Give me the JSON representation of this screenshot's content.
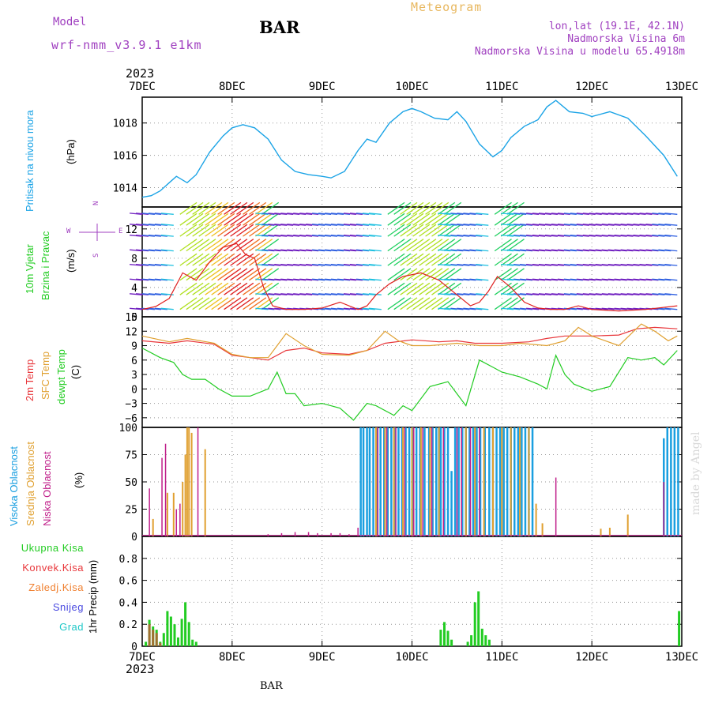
{
  "header": {
    "model_label": "Model",
    "model_name": "wrf-nmm_v3.9.1 e1km",
    "station": "BAR",
    "title": "Meteogram",
    "lonlat": "lon,lat (19.1E, 42.1N)",
    "altitude": "Nadmorska Visina 6m",
    "model_altitude": "Nadmorska Visina u modelu 65.4918m",
    "credit": "made by Angel",
    "footer_station": "BAR"
  },
  "colors": {
    "pressure": "#1aa3e6",
    "t2m": "#e8363a",
    "sfc": "#e0a030",
    "dewpt": "#22cc22",
    "high_cloud": "#1a9fe0",
    "mid_cloud": "#e0a030",
    "low_cloud": "#c0208a",
    "total_precip": "#22cc22",
    "conv_precip": "#e8363a",
    "frz_precip": "#f08030",
    "snow": "#4a4ae0",
    "graupel": "#20c8c8",
    "model_text": "#a040c0",
    "title_text": "#e8b860"
  },
  "time_axis": {
    "year": "2023",
    "ticks": [
      "7DEC",
      "8DEC",
      "9DEC",
      "10DEC",
      "11DEC",
      "12DEC",
      "13DEC"
    ]
  },
  "chart_data": [
    {
      "type": "line",
      "name": "pressure",
      "ylabel": [
        "Pritisak na nivou mora",
        "(hPa)"
      ],
      "ylim": [
        1012.8,
        1019.6
      ],
      "yticks": [
        "1014",
        "1016",
        "1018"
      ],
      "x_days": [
        0,
        0.1,
        0.2,
        0.3,
        0.38,
        0.5,
        0.6,
        0.75,
        0.9,
        1.0,
        1.12,
        1.25,
        1.4,
        1.55,
        1.7,
        1.85,
        2.0,
        2.1,
        2.25,
        2.4,
        2.5,
        2.6,
        2.75,
        2.9,
        3.0,
        3.1,
        3.25,
        3.4,
        3.5,
        3.6,
        3.75,
        3.9,
        4.0,
        4.1,
        4.25,
        4.4,
        4.5,
        4.6,
        4.75,
        4.9,
        5.0,
        5.2,
        5.4,
        5.6,
        5.8,
        5.95
      ],
      "values": [
        1013.4,
        1013.5,
        1013.8,
        1014.3,
        1014.7,
        1014.3,
        1014.8,
        1016.2,
        1017.2,
        1017.7,
        1017.9,
        1017.7,
        1017.0,
        1015.7,
        1015.0,
        1014.8,
        1014.7,
        1014.6,
        1015.0,
        1016.3,
        1017.0,
        1016.8,
        1018.0,
        1018.7,
        1018.9,
        1018.7,
        1018.3,
        1018.2,
        1018.7,
        1018.1,
        1016.7,
        1015.9,
        1016.3,
        1017.1,
        1017.8,
        1018.2,
        1019.0,
        1019.4,
        1018.7,
        1018.6,
        1018.4,
        1018.7,
        1018.3,
        1017.2,
        1016.0,
        1014.7
      ]
    },
    {
      "type": "line",
      "name": "wind",
      "ylabel": [
        "10m Vjetar",
        "Brzina i Pravac",
        "(m/s)"
      ],
      "compass": {
        "n": "N",
        "e": "E",
        "s": "S",
        "w": "W"
      },
      "ylim": [
        0,
        15
      ],
      "yticks": [
        "0",
        "4",
        "8",
        "12"
      ],
      "x_days": [
        0,
        0.15,
        0.3,
        0.45,
        0.6,
        0.75,
        0.9,
        1.05,
        1.15,
        1.25,
        1.35,
        1.45,
        1.6,
        1.8,
        2.0,
        2.2,
        2.4,
        2.5,
        2.6,
        2.75,
        2.9,
        3.1,
        3.3,
        3.5,
        3.65,
        3.75,
        3.85,
        3.95,
        4.1,
        4.25,
        4.4,
        4.55,
        4.7,
        4.85,
        5.0,
        5.3,
        5.6,
        5.95
      ],
      "values": [
        1.0,
        1.4,
        2.5,
        6.0,
        5.0,
        7.5,
        9.5,
        10.0,
        8.5,
        8.0,
        4.0,
        1.5,
        1.0,
        1.0,
        1.2,
        2.0,
        1.0,
        1.5,
        3.0,
        4.5,
        5.5,
        6.0,
        5.0,
        3.0,
        1.5,
        2.0,
        3.5,
        5.5,
        4.0,
        2.0,
        1.2,
        1.0,
        1.0,
        1.5,
        1.0,
        0.8,
        1.0,
        1.5
      ]
    },
    {
      "type": "line",
      "name": "temperature",
      "ylabel": [
        "2m Temp",
        "SFC Temp",
        "dewpt Temp",
        "(C)"
      ],
      "ylim": [
        -8,
        15
      ],
      "yticks": [
        "15",
        "12",
        "9",
        "6",
        "3",
        "0",
        "−3",
        "−6"
      ],
      "series": [
        {
          "name": "2m Temp",
          "x_days": [
            0,
            0.3,
            0.5,
            0.8,
            1.0,
            1.2,
            1.4,
            1.6,
            1.8,
            2.0,
            2.3,
            2.5,
            2.7,
            3.0,
            3.3,
            3.5,
            3.7,
            4.0,
            4.3,
            4.5,
            4.7,
            5.0,
            5.3,
            5.5,
            5.7,
            5.95
          ],
          "values": [
            10.0,
            9.5,
            10.0,
            9.3,
            7.0,
            6.5,
            6.0,
            8.0,
            8.5,
            7.5,
            7.2,
            8.0,
            9.5,
            10.2,
            9.8,
            10.0,
            9.5,
            9.5,
            9.8,
            10.5,
            11.0,
            11.0,
            11.2,
            12.5,
            12.8,
            12.5
          ]
        },
        {
          "name": "SFC Temp",
          "x_days": [
            0,
            0.3,
            0.5,
            0.8,
            1.0,
            1.2,
            1.4,
            1.5,
            1.6,
            1.8,
            2.0,
            2.3,
            2.5,
            2.7,
            2.85,
            3.0,
            3.2,
            3.5,
            3.75,
            4.0,
            4.2,
            4.5,
            4.7,
            4.85,
            5.0,
            5.3,
            5.55,
            5.7,
            5.85,
            5.95
          ],
          "values": [
            11.0,
            9.8,
            10.5,
            9.5,
            7.2,
            6.5,
            6.5,
            9.0,
            11.5,
            9.0,
            7.2,
            7.0,
            8.0,
            12.0,
            10.0,
            9.0,
            9.0,
            9.5,
            9.0,
            9.0,
            9.5,
            9.0,
            10.0,
            12.8,
            11.0,
            9.0,
            13.5,
            12.0,
            10.0,
            11.0
          ]
        },
        {
          "name": "dewpt Temp",
          "x_days": [
            0,
            0.2,
            0.35,
            0.45,
            0.55,
            0.7,
            0.85,
            1.0,
            1.2,
            1.4,
            1.5,
            1.6,
            1.7,
            1.8,
            2.0,
            2.2,
            2.35,
            2.5,
            2.6,
            2.8,
            2.9,
            3.0,
            3.2,
            3.4,
            3.5,
            3.6,
            3.75,
            3.9,
            4.0,
            4.2,
            4.4,
            4.5,
            4.6,
            4.7,
            4.8,
            5.0,
            5.2,
            5.4,
            5.55,
            5.7,
            5.8,
            5.95
          ],
          "values": [
            8.5,
            6.5,
            5.5,
            3.0,
            2.0,
            2.0,
            0.0,
            -1.5,
            -1.5,
            0.0,
            3.5,
            -1.0,
            -1.0,
            -3.5,
            -3.0,
            -4.0,
            -6.5,
            -3.0,
            -3.5,
            -5.5,
            -3.5,
            -4.5,
            0.5,
            1.5,
            -1.0,
            -3.5,
            6.0,
            4.5,
            3.5,
            2.5,
            1.0,
            0.0,
            7.0,
            3.0,
            1.0,
            -0.5,
            0.5,
            6.5,
            6.0,
            6.5,
            5.0,
            8.0
          ]
        }
      ]
    },
    {
      "type": "bar",
      "name": "cloudiness",
      "ylabel": [
        "Visoka Oblacnost",
        "Srednja Oblacnost",
        "Niska Oblacnost",
        "(%)"
      ],
      "ylim": [
        0,
        100
      ],
      "yticks": [
        "0",
        "25",
        "50",
        "75",
        "100"
      ],
      "series": [
        {
          "name": "Visoka Oblacnost",
          "x_days": [
            2.43,
            2.46,
            2.5,
            2.53,
            2.57,
            2.61,
            2.65,
            2.69,
            2.73,
            2.77,
            2.81,
            2.85,
            2.89,
            2.93,
            2.97,
            3.01,
            3.05,
            3.09,
            3.14,
            3.19,
            3.23,
            3.27,
            3.3,
            3.32,
            3.36,
            3.4,
            3.44,
            3.48,
            3.52,
            3.56,
            3.6,
            3.64,
            3.68,
            3.72,
            3.76,
            3.81,
            3.86,
            3.9,
            3.94,
            3.98,
            4.02,
            4.06,
            4.1,
            4.14,
            4.18,
            4.22,
            4.26,
            4.3,
            4.34,
            5.8,
            5.84,
            5.88,
            5.92,
            5.96
          ],
          "values": [
            100,
            100,
            100,
            100,
            100,
            100,
            100,
            100,
            100,
            100,
            100,
            100,
            100,
            100,
            100,
            100,
            100,
            100,
            100,
            100,
            100,
            100,
            100,
            100,
            100,
            100,
            60,
            100,
            100,
            100,
            100,
            100,
            100,
            100,
            100,
            100,
            100,
            100,
            100,
            100,
            100,
            100,
            100,
            100,
            100,
            100,
            100,
            100,
            100,
            90,
            100,
            100,
            100,
            100
          ]
        },
        {
          "name": "Srednja Oblacnost",
          "x_days": [
            0.12,
            0.28,
            0.35,
            0.45,
            0.48,
            0.5,
            0.52,
            0.55,
            0.7,
            2.6,
            2.7,
            2.8,
            2.9,
            3.0,
            3.1,
            3.2,
            3.3,
            3.6,
            3.7,
            3.8,
            3.9,
            4.0,
            4.1,
            4.2,
            4.3,
            4.38,
            4.45,
            5.1,
            5.2,
            5.4
          ],
          "values": [
            16,
            40,
            40,
            50,
            75,
            100,
            100,
            95,
            80,
            100,
            100,
            100,
            100,
            100,
            100,
            100,
            100,
            100,
            100,
            100,
            100,
            100,
            100,
            100,
            100,
            30,
            12,
            7,
            8,
            20
          ]
        },
        {
          "name": "Niska Oblacnost",
          "x_days": [
            0.08,
            0.22,
            0.26,
            0.38,
            0.42,
            0.62,
            1.4,
            1.55,
            1.7,
            1.85,
            1.95,
            2.1,
            2.2,
            2.3,
            2.4,
            2.62,
            2.72,
            2.82,
            2.92,
            3.02,
            3.12,
            3.22,
            3.35,
            3.5,
            3.55,
            3.65,
            3.75,
            4.6,
            5.8
          ],
          "values": [
            44,
            72,
            85,
            25,
            30,
            100,
            2,
            3,
            4,
            4,
            3,
            3,
            3,
            2,
            8,
            100,
            100,
            100,
            100,
            100,
            100,
            100,
            100,
            100,
            100,
            100,
            100,
            54,
            50
          ]
        }
      ]
    },
    {
      "type": "bar",
      "name": "precipitation",
      "ylabel": [
        "1hr Precip (mm)"
      ],
      "legend": [
        "Ukupna Kisa",
        "Konvek.Kisa",
        "Zaledj.Kisa",
        "Snijeg",
        "Grad"
      ],
      "ylim": [
        0,
        1.0
      ],
      "yticks": [
        "0",
        "0.2",
        "0.4",
        "0.6",
        "0.8"
      ],
      "series": [
        {
          "name": "Ukupna Kisa",
          "x_days": [
            0.04,
            0.08,
            0.12,
            0.16,
            0.2,
            0.24,
            0.28,
            0.32,
            0.36,
            0.4,
            0.44,
            0.48,
            0.52,
            0.56,
            0.6,
            3.32,
            3.36,
            3.4,
            3.44,
            3.62,
            3.66,
            3.7,
            3.74,
            3.78,
            3.82,
            3.86,
            5.97
          ],
          "values": [
            0.04,
            0.24,
            0.18,
            0.15,
            0.04,
            0.12,
            0.32,
            0.27,
            0.2,
            0.08,
            0.25,
            0.4,
            0.22,
            0.06,
            0.04,
            0.15,
            0.22,
            0.14,
            0.06,
            0.04,
            0.1,
            0.4,
            0.5,
            0.16,
            0.1,
            0.06,
            0.32
          ]
        },
        {
          "name": "Konvek.Kisa",
          "x_days": [
            0.08,
            0.12,
            0.16,
            0.2
          ],
          "values": [
            0.2,
            0.15,
            0.12,
            0.03
          ]
        }
      ]
    }
  ]
}
